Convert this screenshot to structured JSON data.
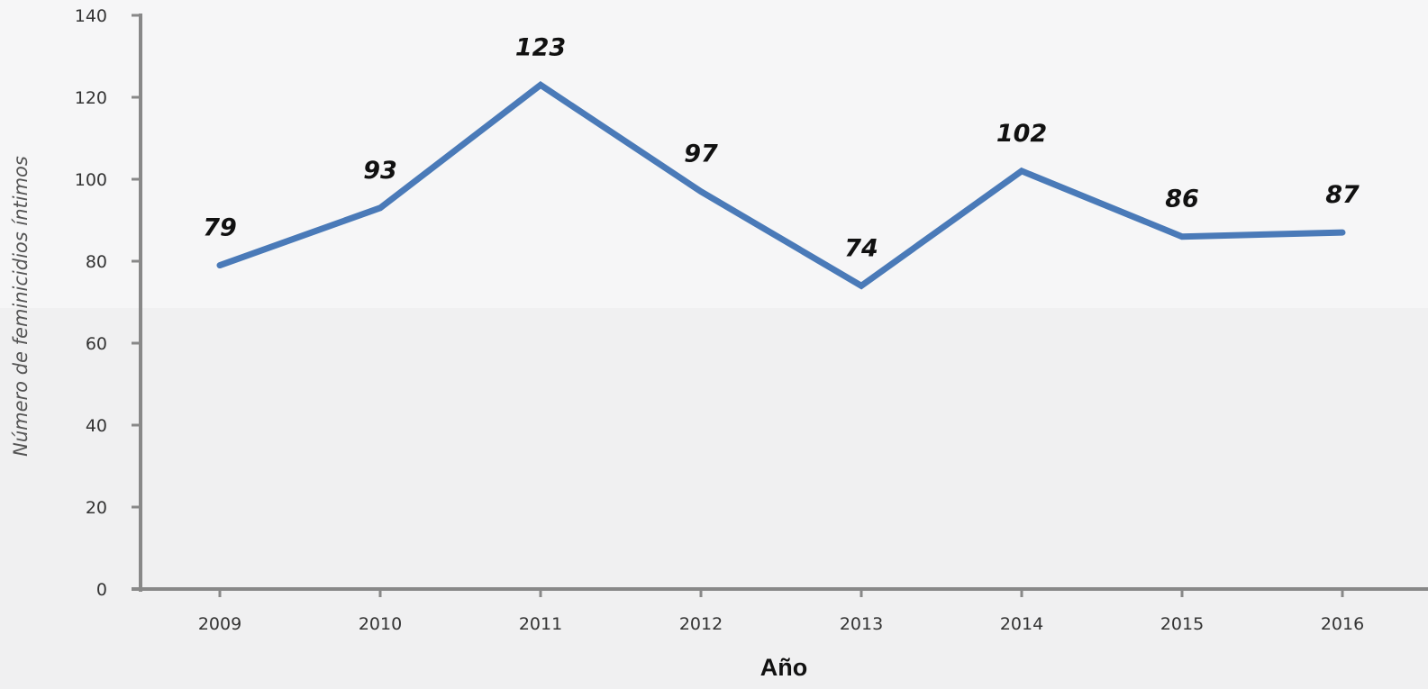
{
  "chart_data": {
    "type": "line",
    "title": "",
    "xlabel": "Año",
    "ylabel": "Número de feminicidios íntimos",
    "categories": [
      "2009",
      "2010",
      "2011",
      "2012",
      "2013",
      "2014",
      "2015",
      "2016"
    ],
    "series": [
      {
        "values": [
          79,
          93,
          123,
          97,
          74,
          102,
          86,
          87
        ]
      }
    ],
    "data_labels": [
      "79",
      "93",
      "123",
      "97",
      "74",
      "102",
      "86",
      "87"
    ],
    "ylim": [
      0,
      140
    ],
    "yticks": [
      "0",
      "20",
      "40",
      "60",
      "80",
      "100",
      "120",
      "140"
    ],
    "grid": false,
    "legend": "none",
    "colors": {
      "line": "#4a7ab8",
      "axis": "#888888",
      "background_top": "#f6f6f7",
      "background_bottom": "#f0f0f1"
    }
  }
}
